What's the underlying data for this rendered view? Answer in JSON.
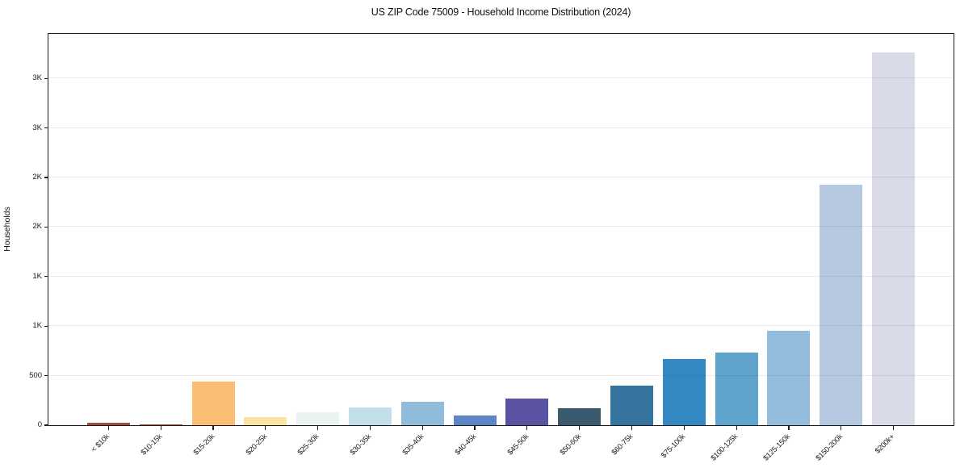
{
  "chart_data": {
    "type": "bar",
    "title": "US ZIP Code 75009 - Household Income Distribution (2024)",
    "xlabel": "",
    "ylabel": "Households",
    "categories": [
      "< $10k",
      "$10-15k",
      "$15-20k",
      "$20-25k",
      "$25-30k",
      "$30-35k",
      "$35-40k",
      "$40-45k",
      "$45-50k",
      "$50-60k",
      "$60-75k",
      "$75-100k",
      "$100-125k",
      "$125-150k",
      "$150-200k",
      "$200k+"
    ],
    "values": [
      25,
      10,
      440,
      85,
      130,
      180,
      240,
      100,
      270,
      170,
      400,
      670,
      730,
      950,
      2430,
      3760
    ],
    "bar_colors": [
      "#9e4a3f",
      "#a65247",
      "#fbbc74",
      "#fde3a3",
      "#e9f3f1",
      "#c3dfe9",
      "#91bbdb",
      "#5d86c6",
      "#5a52a2",
      "#3a5a6d",
      "#35749e",
      "#3489c3",
      "#5ea4cd",
      "#94bcdc",
      "#b7c9e1",
      "#d9dbe8"
    ],
    "ytick_values": [
      0,
      500,
      1000,
      1500,
      2000,
      2500,
      3000,
      3500
    ],
    "ytick_labels": [
      "0",
      "500",
      "1K",
      "1K",
      "2K",
      "2K",
      "3K",
      "3K"
    ],
    "ylim": [
      0,
      3950
    ],
    "grid": "horizontal",
    "legend": null
  }
}
